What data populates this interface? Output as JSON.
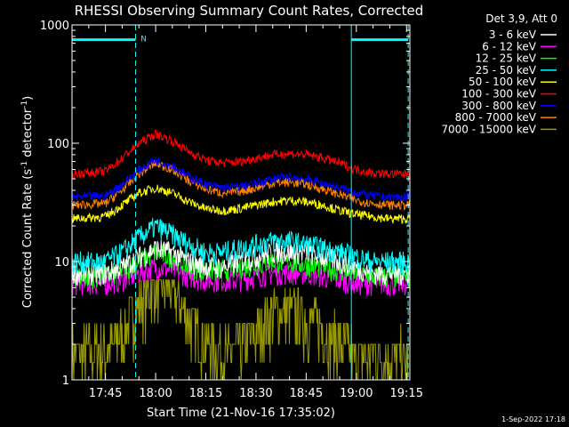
{
  "chart_data": {
    "type": "line",
    "title": "RHESSI Observing Summary Count Rates, Corrected",
    "xlabel": "Start Time (21-Nov-16 17:35:02)",
    "ylabel_main": "Corrected Count Rate (s",
    "ylabel_sup1": "-1",
    "ylabel_mid": " detector",
    "ylabel_sup2": "-1",
    "ylabel_end": ")",
    "date_stamp": "1-Sep-2022 17:18",
    "legend_header": "Det 3,9, Att 0",
    "legend_placement": "top-right outside plot",
    "y_scale": "log",
    "ylim": [
      1,
      1000
    ],
    "x_range_minutes_after_1735": [
      0,
      101
    ],
    "x_ticks": [
      {
        "label": "17:45",
        "min": 10
      },
      {
        "label": "18:00",
        "min": 25
      },
      {
        "label": "18:15",
        "min": 40
      },
      {
        "label": "18:30",
        "min": 55
      },
      {
        "label": "18:45",
        "min": 70
      },
      {
        "label": "19:00",
        "min": 85
      },
      {
        "label": "19:15",
        "min": 100
      }
    ],
    "y_ticks": [
      {
        "label": "1",
        "v": 1
      },
      {
        "label": "10",
        "v": 10
      },
      {
        "label": "100",
        "v": 100
      },
      {
        "label": "1000",
        "v": 1000
      }
    ],
    "annotations": {
      "bar_label": "N",
      "bars": [
        {
          "from_min": 0,
          "to_min": 19,
          "level": 750
        },
        {
          "from_min": 83.5,
          "to_min": 100.5,
          "level": 750
        }
      ],
      "solid_lines_min": [
        0,
        83.5
      ],
      "dashed_lines_min": [
        19,
        100.5
      ]
    },
    "profile_points_min": [
      0,
      10,
      15,
      20,
      25,
      30,
      35,
      40,
      45,
      50,
      55,
      60,
      65,
      70,
      75,
      80,
      85,
      90,
      95,
      100
    ],
    "series": [
      {
        "name": "3 - 6 keV",
        "color": "#ffffff",
        "values": [
          8,
          8,
          9,
          11,
          13,
          12,
          10,
          9,
          9,
          10,
          11,
          12,
          12,
          12,
          11,
          10,
          9,
          8,
          8,
          8
        ]
      },
      {
        "name": "6 - 12 keV",
        "color": "#ff00ff",
        "values": [
          6.5,
          6.5,
          7,
          8,
          9,
          8.5,
          7.5,
          7,
          7,
          7,
          7.5,
          8,
          8,
          8,
          7.5,
          7,
          6.5,
          6.5,
          6.5,
          6.5
        ]
      },
      {
        "name": "12 - 25 keV",
        "color": "#00ff00",
        "values": [
          7.5,
          7.5,
          8.5,
          10,
          12,
          11,
          9,
          8.5,
          8.5,
          9,
          9.5,
          10,
          10,
          9.5,
          9,
          8.5,
          8,
          7.5,
          7.5,
          7.5
        ]
      },
      {
        "name": "25 - 50 keV",
        "color": "#00ffff",
        "values": [
          10,
          10,
          12,
          16,
          20,
          17,
          14,
          12,
          12,
          13,
          14,
          15,
          15,
          14,
          13,
          12,
          11,
          10,
          10,
          10
        ]
      },
      {
        "name": "50 - 100 keV",
        "color": "#ffff00",
        "values": [
          23,
          24,
          30,
          38,
          42,
          38,
          32,
          28,
          27,
          28,
          30,
          32,
          33,
          32,
          30,
          27,
          25,
          24,
          23,
          23
        ]
      },
      {
        "name": "100 - 300 keV",
        "color": "#ff0000",
        "values": [
          55,
          58,
          75,
          100,
          120,
          105,
          85,
          72,
          68,
          70,
          75,
          80,
          82,
          80,
          75,
          68,
          60,
          56,
          55,
          55
        ]
      },
      {
        "name": "300 - 800 keV",
        "color": "#0000ff",
        "values": [
          35,
          36,
          45,
          60,
          72,
          65,
          52,
          45,
          42,
          43,
          46,
          50,
          52,
          50,
          46,
          42,
          38,
          36,
          35,
          35
        ]
      },
      {
        "name": "800 - 7000 keV",
        "color": "#ff8000",
        "values": [
          30,
          31,
          40,
          55,
          68,
          60,
          48,
          41,
          38,
          39,
          42,
          46,
          47,
          45,
          41,
          37,
          33,
          31,
          30,
          30
        ]
      },
      {
        "name": "7000 - 15000 keV",
        "color": "#9a9a00",
        "values": [
          1.5,
          1.6,
          2.2,
          4,
          6,
          5,
          3,
          1.8,
          1.5,
          1.6,
          2.3,
          3.2,
          3.4,
          3,
          2.4,
          1.8,
          1.5,
          1.4,
          1.4,
          1.4
        ]
      }
    ]
  }
}
